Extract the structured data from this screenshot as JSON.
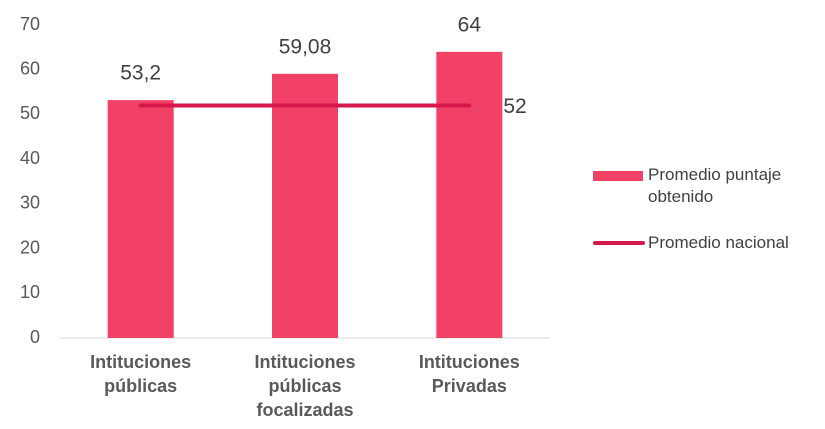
{
  "chart_data": {
    "type": "bar",
    "categories": [
      "Intituciones públicas",
      "Intituciones públicas focalizadas",
      "Intituciones Privadas"
    ],
    "series": [
      {
        "name": "Promedio puntaje obtenido",
        "type": "bar",
        "color": "#f24166",
        "values": [
          53.2,
          59.08,
          64
        ],
        "value_labels": [
          "53,2",
          "59,08",
          "64"
        ]
      },
      {
        "name": "Promedio nacional",
        "type": "line",
        "color": "#d6174b",
        "values": [
          52,
          52,
          52
        ]
      }
    ],
    "ylim": [
      0,
      70
    ],
    "yticks": [
      0,
      10,
      20,
      30,
      40,
      50,
      60,
      70
    ],
    "grid": false,
    "legend": "right"
  }
}
